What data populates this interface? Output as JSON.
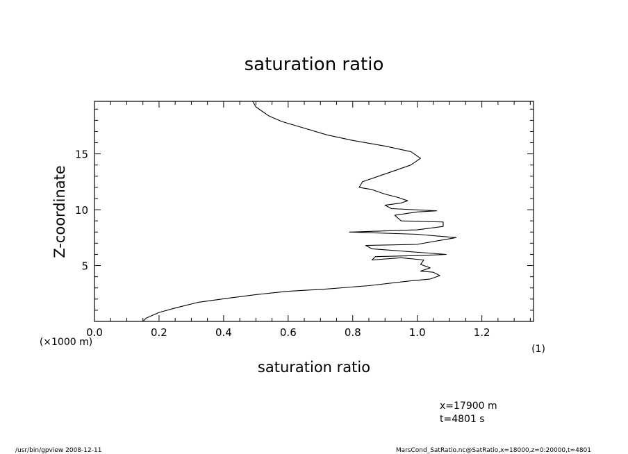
{
  "chart_data": {
    "type": "line",
    "title": "saturation ratio",
    "xlabel": "saturation ratio",
    "ylabel": "Z-coordinate",
    "xunit": "(1)",
    "yunit": "(×1000 m)",
    "xlim": [
      0.0,
      1.36
    ],
    "ylim": [
      0.0,
      19.7
    ],
    "xticks": [
      0.0,
      0.2,
      0.4,
      0.6,
      0.8,
      1.0,
      1.2
    ],
    "xtick_labels": [
      "0.0",
      "0.2",
      "0.4",
      "0.6",
      "0.8",
      "1.0",
      "1.2"
    ],
    "yticks": [
      5,
      10,
      15
    ],
    "ytick_labels": [
      "5",
      "10",
      "15"
    ],
    "grid": false,
    "series": [
      {
        "points": [
          [
            0.15,
            0.0
          ],
          [
            0.16,
            0.3
          ],
          [
            0.2,
            0.8
          ],
          [
            0.25,
            1.2
          ],
          [
            0.32,
            1.7
          ],
          [
            0.42,
            2.1
          ],
          [
            0.5,
            2.4
          ],
          [
            0.6,
            2.7
          ],
          [
            0.72,
            2.9
          ],
          [
            0.85,
            3.2
          ],
          [
            0.97,
            3.6
          ],
          [
            1.04,
            3.8
          ],
          [
            1.07,
            4.1
          ],
          [
            1.05,
            4.4
          ],
          [
            1.01,
            4.5
          ],
          [
            1.04,
            4.8
          ],
          [
            1.01,
            5.1
          ],
          [
            1.02,
            5.5
          ],
          [
            0.95,
            5.7
          ],
          [
            0.86,
            5.5
          ],
          [
            0.87,
            5.8
          ],
          [
            1.01,
            5.9
          ],
          [
            1.09,
            6.0
          ],
          [
            0.86,
            6.5
          ],
          [
            0.84,
            6.8
          ],
          [
            1.0,
            6.9
          ],
          [
            1.12,
            7.5
          ],
          [
            1.0,
            7.8
          ],
          [
            0.79,
            8.0
          ],
          [
            1.0,
            8.2
          ],
          [
            1.08,
            8.5
          ],
          [
            1.08,
            8.9
          ],
          [
            0.95,
            9.0
          ],
          [
            0.93,
            9.5
          ],
          [
            1.0,
            9.8
          ],
          [
            1.06,
            9.9
          ],
          [
            0.92,
            10.1
          ],
          [
            0.9,
            10.4
          ],
          [
            0.95,
            10.6
          ],
          [
            0.97,
            10.8
          ],
          [
            0.94,
            11.1
          ],
          [
            0.9,
            11.4
          ],
          [
            0.86,
            11.8
          ],
          [
            0.82,
            12.0
          ],
          [
            0.83,
            12.5
          ],
          [
            0.88,
            13.0
          ],
          [
            0.93,
            13.5
          ],
          [
            0.98,
            14.0
          ],
          [
            1.01,
            14.6
          ],
          [
            0.98,
            15.2
          ],
          [
            0.9,
            15.7
          ],
          [
            0.8,
            16.2
          ],
          [
            0.72,
            16.7
          ],
          [
            0.65,
            17.3
          ],
          [
            0.58,
            17.9
          ],
          [
            0.54,
            18.4
          ],
          [
            0.52,
            18.8
          ],
          [
            0.5,
            19.2
          ],
          [
            0.49,
            19.7
          ]
        ]
      }
    ]
  },
  "info": {
    "line1": "x=17900 m",
    "line2": "t=4801 s"
  },
  "footer": {
    "left": "/usr/bin/gpview   2008-12-11",
    "right": "MarsCond_SatRatio.nc@SatRatio,x=18000,z=0:20000,t=4801"
  }
}
